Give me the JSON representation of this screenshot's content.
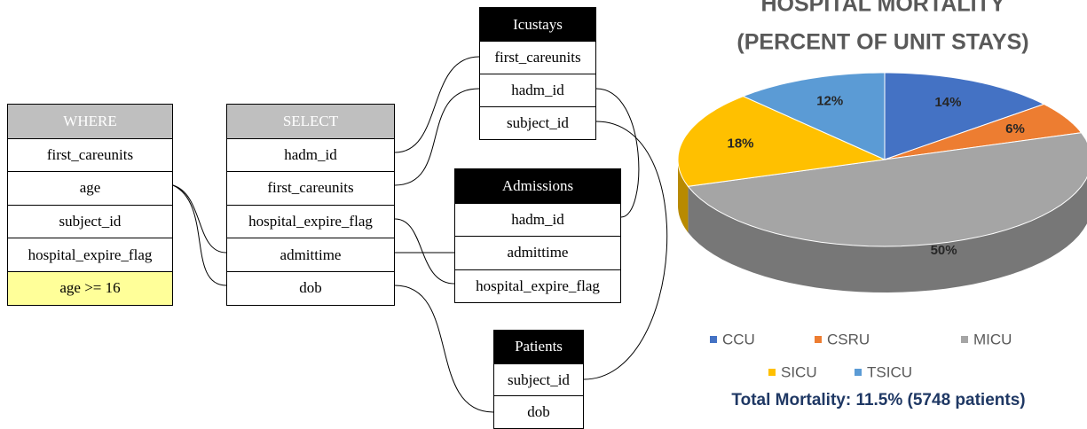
{
  "tables": [
    {
      "header": "WHERE",
      "rows": [
        "first_careunits",
        "age",
        "subject_id",
        "hospital_expire_flag",
        "age >= 16"
      ]
    },
    {
      "header": "SELECT",
      "rows": [
        "hadm_id",
        "first_careunits",
        "hospital_expire_flag",
        "admittime",
        "dob"
      ]
    },
    {
      "header": "Icustays",
      "rows": [
        "first_careunits",
        "hadm_id",
        "subject_id"
      ]
    },
    {
      "header": "Admissions",
      "rows": [
        "hadm_id",
        "admittime",
        "hospital_expire_flag"
      ]
    },
    {
      "header": "Patients",
      "rows": [
        "subject_id",
        "dob"
      ]
    }
  ],
  "chart_data": {
    "type": "pie",
    "title": "HOSPITAL MORTALITY",
    "subtitle": "(PERCENT OF UNIT STAYS)",
    "categories": [
      "CCU",
      "CSRU",
      "MICU",
      "SICU",
      "TSICU"
    ],
    "values": [
      14,
      6,
      50,
      18,
      12
    ],
    "value_labels": [
      "14%",
      "6%",
      "50%",
      "18%",
      "12%"
    ],
    "colors": [
      "#4472c4",
      "#ed7d31",
      "#a5a5a5",
      "#ffc000",
      "#5b9bd5"
    ],
    "annotation": "Total Mortality: 11.5% (5748 patients)"
  }
}
